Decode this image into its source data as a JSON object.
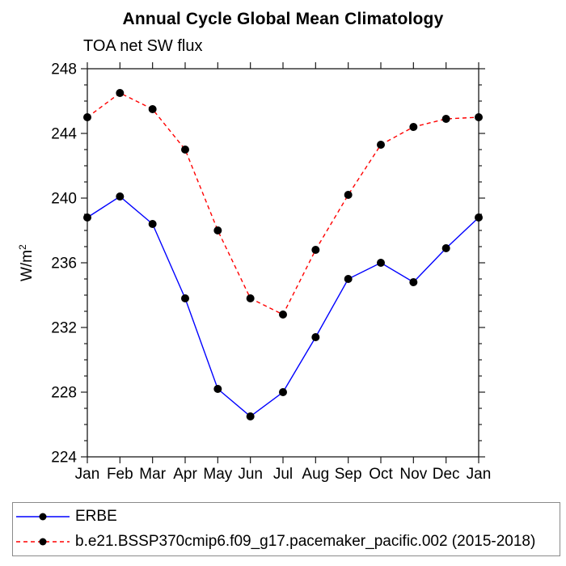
{
  "title": "Annual Cycle Global Mean Climatology",
  "subtitle": "TOA net SW flux",
  "ylabel_base": "W/m",
  "ylabel_sup": "2",
  "colors": {
    "erbe_line": "#0000ff",
    "model_line": "#ff0000",
    "marker": "#000000",
    "axis": "#1a1a1a",
    "legend_border": "#8a8a8a"
  },
  "legend": [
    {
      "label": "ERBE",
      "color": "#0000ff",
      "style": "solid"
    },
    {
      "label": "b.e21.BSSP370cmip6.f09_g17.pacemaker_pacific.002 (2015-2018)",
      "color": "#ff0000",
      "style": "dashed"
    }
  ],
  "chart_data": {
    "type": "line",
    "title": "Annual Cycle Global Mean Climatology",
    "subtitle": "TOA net SW flux",
    "ylabel": "W/m2",
    "categories": [
      "Jan",
      "Feb",
      "Mar",
      "Apr",
      "May",
      "Jun",
      "Jul",
      "Aug",
      "Sep",
      "Oct",
      "Nov",
      "Dec",
      "Jan"
    ],
    "series": [
      {
        "name": "ERBE",
        "id": "erbe",
        "color": "#0000ff",
        "dash": "solid",
        "marker": "black-dot",
        "values": [
          238.8,
          240.1,
          238.4,
          233.8,
          228.2,
          226.5,
          228.0,
          231.4,
          235.0,
          236.0,
          234.8,
          236.9,
          238.8
        ]
      },
      {
        "name": "b.e21.BSSP370cmip6.f09_g17.pacemaker_pacific.002 (2015-2018)",
        "id": "pacemaker-model",
        "color": "#ff0000",
        "dash": "dashed",
        "marker": "black-dot",
        "values": [
          245.0,
          246.5,
          245.5,
          243.0,
          238.0,
          233.8,
          232.8,
          236.8,
          240.2,
          243.3,
          244.4,
          244.9,
          245.0
        ]
      }
    ],
    "ylim": [
      224,
      248
    ],
    "yticks": [
      224,
      228,
      232,
      236,
      240,
      244,
      248
    ],
    "minor_tick_interval": 1,
    "grid": false,
    "axes_box": true,
    "legend_position": "bottom"
  }
}
